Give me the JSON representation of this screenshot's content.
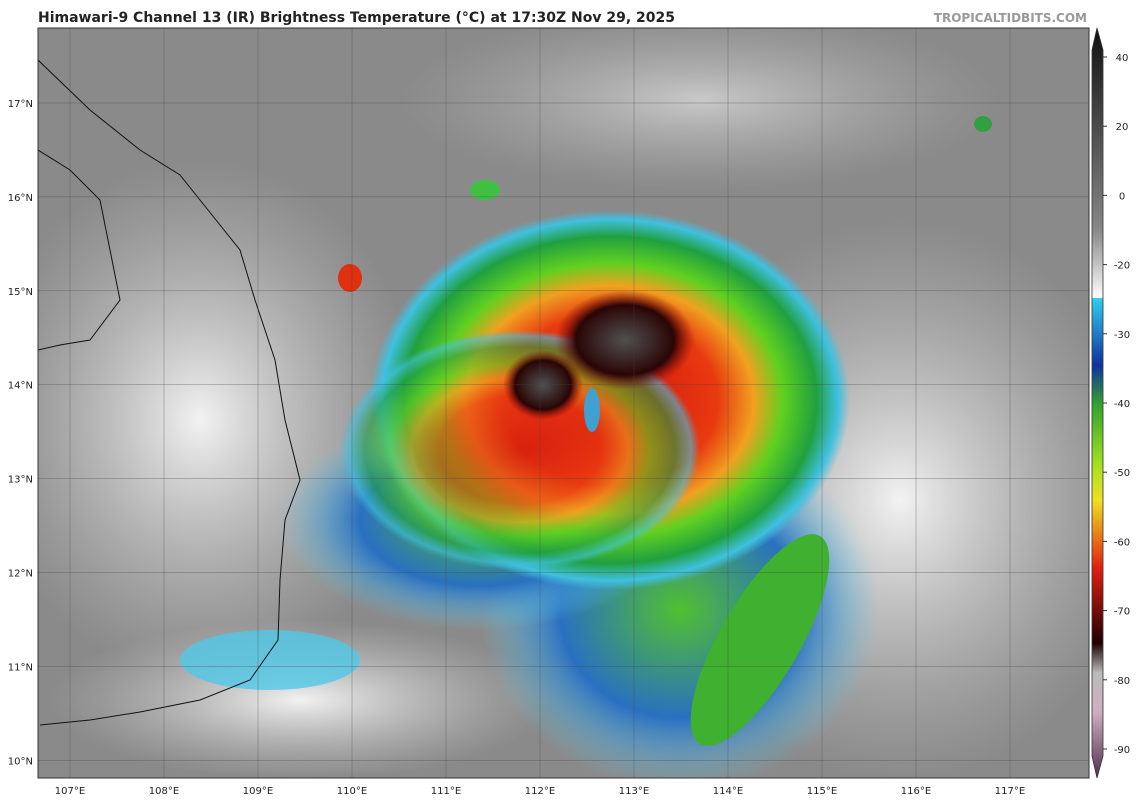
{
  "header": {
    "title": "Himawari-9 Channel 13 (IR) Brightness Temperature (°C) at 17:30Z Nov 29, 2025",
    "source": "TROPICALTIDBITS.COM"
  },
  "map": {
    "lat_labels": [
      "17°N",
      "16°N",
      "15°N",
      "14°N",
      "13°N",
      "12°N",
      "11°N",
      "10°N"
    ],
    "lon_labels": [
      "107°E",
      "108°E",
      "109°E",
      "110°E",
      "111°E",
      "112°E",
      "113°E",
      "114°E",
      "115°E",
      "116°E",
      "117°E"
    ]
  },
  "colorbar": {
    "ticks": [
      40,
      20,
      0,
      -20,
      -30,
      -40,
      -50,
      -60,
      -70,
      -80,
      -90
    ]
  }
}
